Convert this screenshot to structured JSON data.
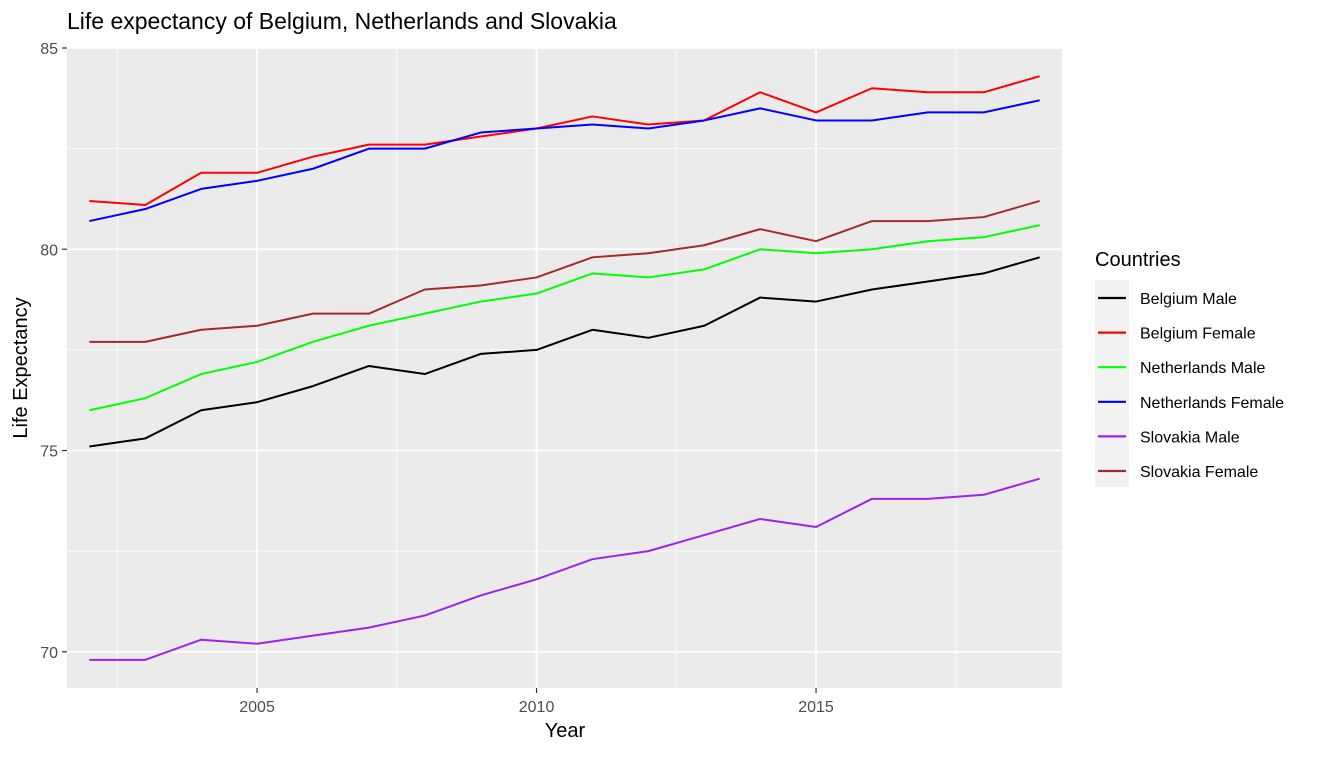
{
  "chart_data": {
    "type": "line",
    "title": "Life expectancy of Belgium, Netherlands and Slovakia",
    "xlabel": "Year",
    "ylabel": "Life Expectancy",
    "xlim": [
      2001.6,
      2019.4
    ],
    "ylim": [
      69.1,
      85.0
    ],
    "x_ticks": [
      2005,
      2010,
      2015
    ],
    "y_ticks": [
      70,
      75,
      80,
      85
    ],
    "x": [
      2002,
      2003,
      2004,
      2005,
      2006,
      2007,
      2008,
      2009,
      2010,
      2011,
      2012,
      2013,
      2014,
      2015,
      2016,
      2017,
      2018,
      2019
    ],
    "grid": true,
    "legend": {
      "title": "Countries",
      "position": "right"
    },
    "series": [
      {
        "name": "Belgium Male",
        "color": "#000000",
        "values": [
          75.1,
          75.3,
          76.0,
          76.2,
          76.6,
          77.1,
          76.9,
          77.4,
          77.5,
          78.0,
          77.8,
          78.1,
          78.8,
          78.7,
          79.0,
          79.2,
          79.4,
          79.8
        ]
      },
      {
        "name": "Belgium Female",
        "color": "#ff0000",
        "values": [
          81.2,
          81.1,
          81.9,
          81.9,
          82.3,
          82.6,
          82.6,
          82.8,
          83.0,
          83.3,
          83.1,
          83.2,
          83.9,
          83.4,
          84.0,
          83.9,
          83.9,
          84.3
        ]
      },
      {
        "name": "Netherlands Male",
        "color": "#00ff00",
        "values": [
          76.0,
          76.3,
          76.9,
          77.2,
          77.7,
          78.1,
          78.4,
          78.7,
          78.9,
          79.4,
          79.3,
          79.5,
          80.0,
          79.9,
          80.0,
          80.2,
          80.3,
          80.6
        ]
      },
      {
        "name": "Netherlands Female",
        "color": "#0000ff",
        "values": [
          80.7,
          81.0,
          81.5,
          81.7,
          82.0,
          82.5,
          82.5,
          82.9,
          83.0,
          83.1,
          83.0,
          83.2,
          83.5,
          83.2,
          83.2,
          83.4,
          83.4,
          83.7
        ]
      },
      {
        "name": "Slovakia Male",
        "color": "#a020f0",
        "values": [
          69.8,
          69.8,
          70.3,
          70.2,
          70.4,
          70.6,
          70.9,
          71.4,
          71.8,
          72.3,
          72.5,
          72.9,
          73.3,
          73.1,
          73.8,
          73.8,
          73.9,
          74.3
        ]
      },
      {
        "name": "Slovakia Female",
        "color": "#a52a2a",
        "values": [
          77.7,
          77.7,
          78.0,
          78.1,
          78.4,
          78.4,
          79.0,
          79.1,
          79.3,
          79.8,
          79.9,
          80.1,
          80.5,
          80.2,
          80.7,
          80.7,
          80.8,
          81.2
        ]
      }
    ]
  }
}
